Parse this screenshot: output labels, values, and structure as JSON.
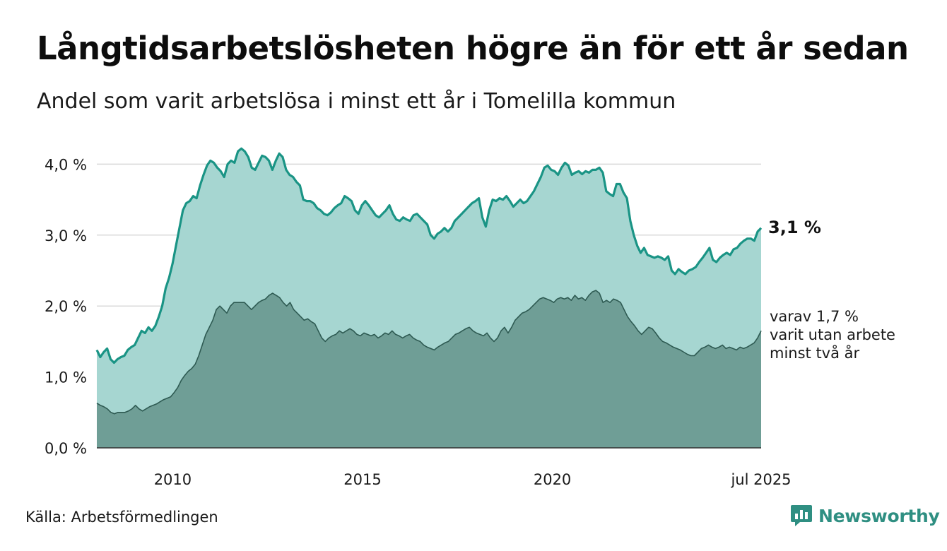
{
  "title": "Långtidsarbetslösheten högre än för ett år sedan",
  "subtitle": "Andel som varit arbetslösa i minst ett år i Tomelilla kommun",
  "source": "Källa: Arbetsförmedlingen",
  "brand": {
    "name": "Newsworthy",
    "icon": "newsworthy-logo-icon"
  },
  "colors": {
    "upper_line": "#1a9485",
    "upper_fill": "#a6d6d1",
    "lower_line": "#2e5a52",
    "lower_fill": "#6f9e96",
    "grid": "#d9d9d9",
    "brand": "#2f8f82"
  },
  "annotations": {
    "end_value": "3,1 %",
    "sub_note": [
      "varav 1,7 %",
      "varit utan arbete",
      "minst två år"
    ]
  },
  "chart_data": {
    "type": "area",
    "x_unit": "year",
    "x_start": 2008.0,
    "x_end": 2025.5,
    "x_step": 0.0833,
    "xticks": [
      {
        "value": 2010,
        "label": "2010"
      },
      {
        "value": 2015,
        "label": "2015"
      },
      {
        "value": 2020,
        "label": "2020"
      },
      {
        "value": 2025.5,
        "label": "jul 2025"
      }
    ],
    "yticks": [
      {
        "value": 0,
        "label": "0,0 %"
      },
      {
        "value": 1,
        "label": "1,0 %"
      },
      {
        "value": 2,
        "label": "2,0 %"
      },
      {
        "value": 3,
        "label": "3,0 %"
      },
      {
        "value": 4,
        "label": "4,0 %"
      }
    ],
    "ylim": [
      0,
      4.4
    ],
    "grid": true,
    "series": [
      {
        "key": "one_year",
        "values": [
          1.38,
          1.28,
          1.35,
          1.4,
          1.25,
          1.2,
          1.25,
          1.28,
          1.3,
          1.38,
          1.42,
          1.45,
          1.55,
          1.65,
          1.62,
          1.7,
          1.65,
          1.72,
          1.85,
          2.0,
          2.25,
          2.4,
          2.6,
          2.85,
          3.1,
          3.35,
          3.45,
          3.48,
          3.55,
          3.52,
          3.7,
          3.85,
          3.98,
          4.05,
          4.02,
          3.95,
          3.9,
          3.82,
          4.0,
          4.05,
          4.02,
          4.18,
          4.22,
          4.18,
          4.1,
          3.95,
          3.92,
          4.02,
          4.12,
          4.1,
          4.05,
          3.92,
          4.05,
          4.15,
          4.1,
          3.92,
          3.85,
          3.82,
          3.75,
          3.7,
          3.5,
          3.48,
          3.48,
          3.45,
          3.38,
          3.35,
          3.3,
          3.28,
          3.32,
          3.38,
          3.42,
          3.45,
          3.55,
          3.52,
          3.48,
          3.35,
          3.3,
          3.42,
          3.48,
          3.42,
          3.35,
          3.28,
          3.25,
          3.3,
          3.35,
          3.42,
          3.3,
          3.22,
          3.2,
          3.25,
          3.22,
          3.2,
          3.28,
          3.3,
          3.25,
          3.2,
          3.15,
          3.0,
          2.95,
          3.02,
          3.05,
          3.1,
          3.05,
          3.1,
          3.2,
          3.25,
          3.3,
          3.35,
          3.4,
          3.45,
          3.48,
          3.52,
          3.25,
          3.12,
          3.35,
          3.5,
          3.48,
          3.52,
          3.5,
          3.55,
          3.48,
          3.4,
          3.45,
          3.5,
          3.45,
          3.48,
          3.55,
          3.62,
          3.72,
          3.82,
          3.95,
          3.98,
          3.92,
          3.9,
          3.85,
          3.95,
          4.02,
          3.98,
          3.85,
          3.88,
          3.9,
          3.86,
          3.9,
          3.88,
          3.92,
          3.92,
          3.95,
          3.88,
          3.62,
          3.58,
          3.55,
          3.72,
          3.72,
          3.6,
          3.52,
          3.2,
          3.0,
          2.85,
          2.75,
          2.82,
          2.72,
          2.7,
          2.68,
          2.7,
          2.68,
          2.65,
          2.7,
          2.5,
          2.45,
          2.52,
          2.48,
          2.45,
          2.5,
          2.52,
          2.55,
          2.62,
          2.68,
          2.75,
          2.82,
          2.65,
          2.62,
          2.68,
          2.72,
          2.75,
          2.72,
          2.8,
          2.82,
          2.88,
          2.92,
          2.95,
          2.95,
          2.92,
          3.05,
          3.1
        ]
      },
      {
        "key": "two_years",
        "values": [
          0.63,
          0.6,
          0.58,
          0.55,
          0.5,
          0.48,
          0.5,
          0.5,
          0.5,
          0.52,
          0.55,
          0.6,
          0.55,
          0.52,
          0.55,
          0.58,
          0.6,
          0.62,
          0.65,
          0.68,
          0.7,
          0.72,
          0.78,
          0.85,
          0.95,
          1.02,
          1.08,
          1.12,
          1.18,
          1.3,
          1.45,
          1.6,
          1.7,
          1.8,
          1.95,
          2.0,
          1.95,
          1.9,
          2.0,
          2.05,
          2.05,
          2.05,
          2.05,
          2.0,
          1.95,
          2.0,
          2.05,
          2.08,
          2.1,
          2.15,
          2.18,
          2.15,
          2.12,
          2.05,
          2.0,
          2.05,
          1.95,
          1.9,
          1.85,
          1.8,
          1.82,
          1.78,
          1.75,
          1.65,
          1.55,
          1.5,
          1.55,
          1.58,
          1.6,
          1.65,
          1.62,
          1.65,
          1.68,
          1.65,
          1.6,
          1.58,
          1.62,
          1.6,
          1.58,
          1.6,
          1.55,
          1.58,
          1.62,
          1.6,
          1.65,
          1.6,
          1.58,
          1.55,
          1.58,
          1.6,
          1.55,
          1.52,
          1.5,
          1.45,
          1.42,
          1.4,
          1.38,
          1.42,
          1.45,
          1.48,
          1.5,
          1.55,
          1.6,
          1.62,
          1.65,
          1.68,
          1.7,
          1.65,
          1.62,
          1.6,
          1.58,
          1.62,
          1.55,
          1.5,
          1.55,
          1.65,
          1.7,
          1.62,
          1.7,
          1.8,
          1.85,
          1.9,
          1.92,
          1.95,
          2.0,
          2.05,
          2.1,
          2.12,
          2.1,
          2.08,
          2.05,
          2.1,
          2.12,
          2.1,
          2.12,
          2.08,
          2.15,
          2.1,
          2.12,
          2.08,
          2.15,
          2.2,
          2.22,
          2.18,
          2.05,
          2.08,
          2.05,
          2.1,
          2.08,
          2.05,
          1.95,
          1.85,
          1.78,
          1.72,
          1.65,
          1.6,
          1.65,
          1.7,
          1.68,
          1.62,
          1.55,
          1.5,
          1.48,
          1.45,
          1.42,
          1.4,
          1.38,
          1.35,
          1.32,
          1.3,
          1.3,
          1.35,
          1.4,
          1.42,
          1.45,
          1.42,
          1.4,
          1.42,
          1.45,
          1.4,
          1.42,
          1.4,
          1.38,
          1.42,
          1.4,
          1.42,
          1.45,
          1.48,
          1.55,
          1.65
        ]
      }
    ]
  }
}
